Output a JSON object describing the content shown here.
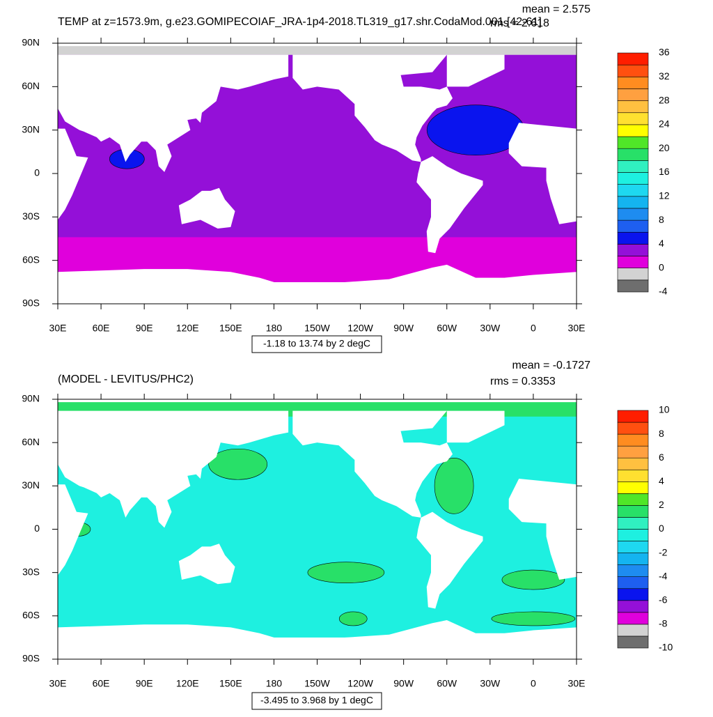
{
  "panels": [
    {
      "title": "TEMP at z=1573.9m, g.e23.GOMIPECOIAF_JRA-1p4-2018.TL319_g17.shr.CodaMod.001 [42-61]",
      "mean": "mean = 2.575",
      "rms": "rms = 2.618",
      "lat_labels": [
        "90N",
        "60N",
        "30N",
        "0",
        "30S",
        "60S",
        "90S"
      ],
      "lon_labels": [
        "30E",
        "60E",
        "90E",
        "120E",
        "150E",
        "180",
        "150W",
        "120W",
        "90W",
        "60W",
        "30W",
        "0",
        "30E"
      ],
      "range_label": "-1.18 to 13.74 by 2 degC",
      "colorbar": {
        "labels": [
          "36",
          "32",
          "28",
          "24",
          "20",
          "16",
          "12",
          "8",
          "4",
          "0",
          "-4"
        ]
      }
    },
    {
      "title": "(MODEL - LEVITUS/PHC2)",
      "mean": "mean = -0.1727",
      "rms": "rms = 0.3353",
      "lat_labels": [
        "90N",
        "60N",
        "30N",
        "0",
        "30S",
        "60S",
        "90S"
      ],
      "lon_labels": [
        "30E",
        "60E",
        "90E",
        "120E",
        "150E",
        "180",
        "150W",
        "120W",
        "90W",
        "60W",
        "30W",
        "0",
        "30E"
      ],
      "range_label": "-3.495 to 3.968 by 1 degC",
      "colorbar": {
        "labels": [
          "10",
          "8",
          "6",
          "4",
          "2",
          "0",
          "-2",
          "-4",
          "-6",
          "-8",
          "-10"
        ]
      }
    }
  ],
  "palette": [
    "#6e6e6e",
    "#d2d2d2",
    "#e000dc",
    "#9410d8",
    "#0a14ee",
    "#1e5ff0",
    "#1e8cf0",
    "#14b4f0",
    "#1ed8f0",
    "#1ef0e0",
    "#30f0c0",
    "#28e068",
    "#50e628",
    "#ffff00",
    "#ffe030",
    "#ffc040",
    "#ffa040",
    "#ff8c20",
    "#ff5010",
    "#ff1e00"
  ]
}
